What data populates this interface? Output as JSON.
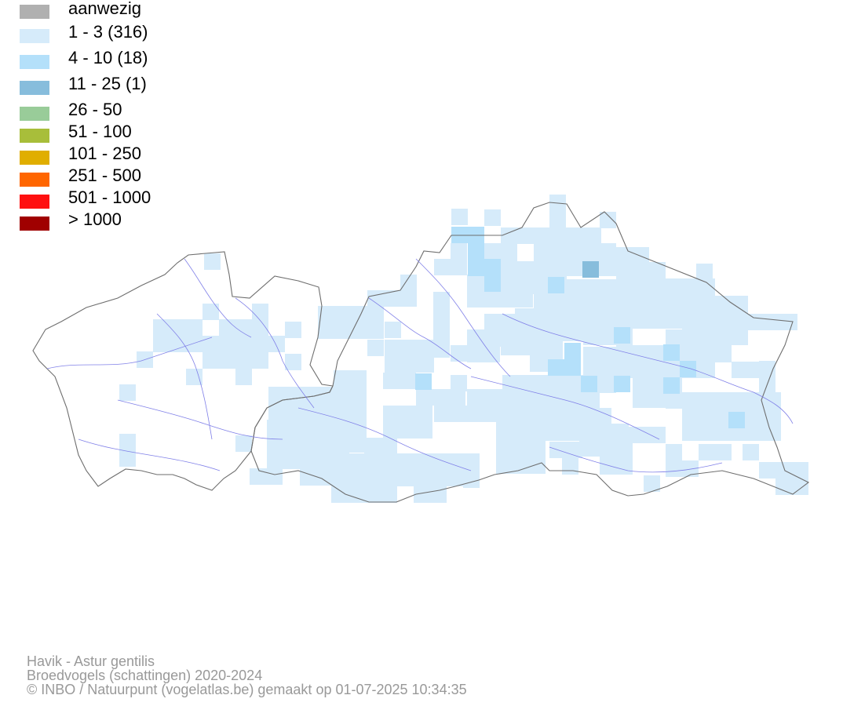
{
  "legend": [
    {
      "label": "aanwezig",
      "color": "#b0b0b0"
    },
    {
      "label": "1 - 3 (316)",
      "color": "#d6ebfa"
    },
    {
      "label": "4 - 10 (18)",
      "color": "#b4e0fa"
    },
    {
      "label": "11 - 25 (1)",
      "color": "#87bddc"
    },
    {
      "label": "26 - 50",
      "color": "#99cc99"
    },
    {
      "label": "51 - 100",
      "color": "#a8be3a"
    },
    {
      "label": "101 - 250",
      "color": "#e0ae00"
    },
    {
      "label": "251 - 500",
      "color": "#ff6600"
    },
    {
      "label": "501 - 1000",
      "color": "#ff1010"
    },
    {
      "label": "> 1000",
      "color": "#a00000"
    }
  ],
  "footer": {
    "line1": "Havik - Astur gentilis",
    "line2": "Broedvogels (schattingen) 2020-2024",
    "line3": "© INBO / Natuurpunt (vogelatlas.be) gemaakt op 01-07-2025 10:34:35"
  },
  "colors": {
    "boundary": "#6e6e6e",
    "river": "#8080e8"
  }
}
